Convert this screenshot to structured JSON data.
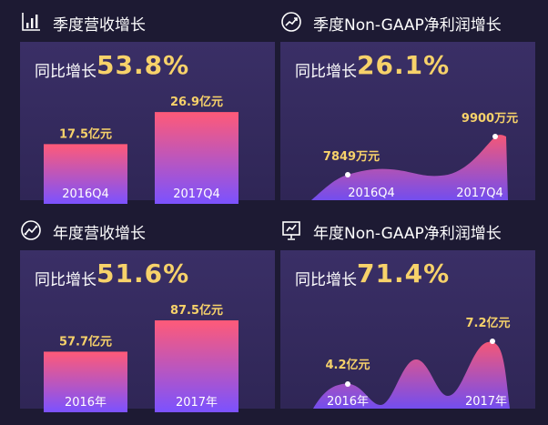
{
  "sections": [
    {
      "title": "季度营收增长",
      "growth_label": "同比增长",
      "growth_value": "53.8%",
      "icon": "bar-chart-icon"
    },
    {
      "title": "季度Non-GAAP净利润增长",
      "growth_label": "同比增长",
      "growth_value": "26.1%",
      "icon": "trend-up-icon"
    },
    {
      "title": "年度营收增长",
      "growth_label": "同比增长",
      "growth_value": "51.6%",
      "icon": "gauge-icon"
    },
    {
      "title": "年度Non-GAAP净利润增长",
      "growth_label": "同比增长",
      "growth_value": "71.4%",
      "icon": "presentation-chart-icon"
    }
  ],
  "colors": {
    "background": "#1d1a33",
    "panel": "#3a2f66",
    "accent": "#f7d26a",
    "bar_top": "#ff5a78",
    "bar_bottom": "#7b52ff"
  },
  "chart_data": [
    {
      "type": "bar",
      "categories": [
        "2016Q4",
        "2017Q4"
      ],
      "values": [
        17.5,
        26.9
      ],
      "data_labels": [
        "17.5亿元",
        "26.9亿元"
      ],
      "ylim": [
        0,
        32
      ]
    },
    {
      "type": "area",
      "categories": [
        "2016Q4",
        "2017Q4"
      ],
      "values": [
        7849,
        9900
      ],
      "data_labels": [
        "7849万元",
        "9900万元"
      ]
    },
    {
      "type": "bar",
      "categories": [
        "2016年",
        "2017年"
      ],
      "values": [
        57.7,
        87.5
      ],
      "data_labels": [
        "57.7亿元",
        "87.5亿元"
      ],
      "ylim": [
        0,
        104
      ]
    },
    {
      "type": "area",
      "categories": [
        "2016年",
        "2017年"
      ],
      "values": [
        4.2,
        7.2
      ],
      "data_labels": [
        "4.2亿元",
        "7.2亿元"
      ]
    }
  ]
}
